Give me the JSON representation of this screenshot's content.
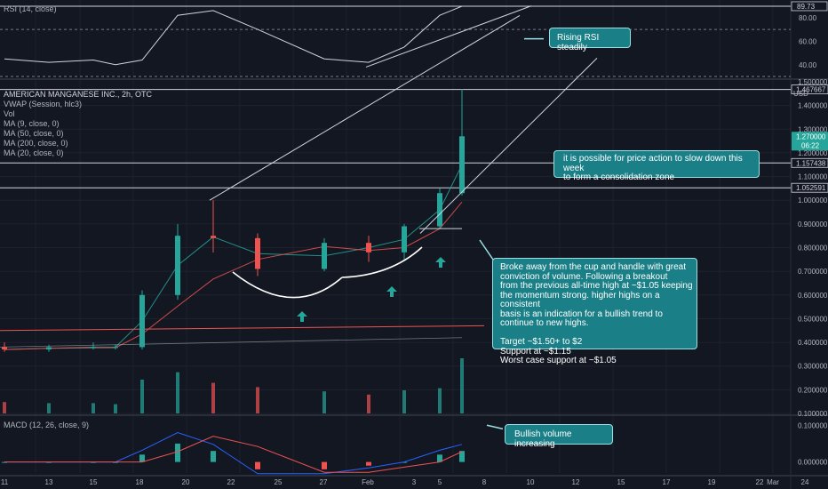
{
  "chart_data": [
    {
      "type": "line",
      "panel": "RSI",
      "indicator_label": "RSI (14, close)",
      "y_ticks": [
        40.0,
        60.0,
        80.0
      ],
      "ylim": [
        30,
        95
      ],
      "last_value": "89.73",
      "levels": [
        30,
        70,
        89.73
      ],
      "x": [
        "Jan 11",
        "Jan 13",
        "Jan 15",
        "Jan 18",
        "Jan 20",
        "Jan 22",
        "Jan 25",
        "Jan 27",
        "Feb 1",
        "Feb 3",
        "Feb 5",
        "Feb 8",
        "Feb 9"
      ],
      "series": [
        {
          "values": [
            45,
            42,
            44,
            40,
            44,
            82,
            86,
            70,
            45,
            42,
            55,
            82,
            89.73
          ]
        }
      ],
      "annotation": "Rising RSI steadily"
    },
    {
      "type": "candlestick",
      "panel": "Price",
      "title": "AMERICAN MANGANESE INC., 2h, OTC",
      "indicators": [
        "VWAP (Session, hlc3)",
        "Vol",
        "MA (9, close, 0)",
        "MA (50, close, 0)",
        "MA (200, close, 0)",
        "MA (20, close, 0)"
      ],
      "currency": "USD",
      "y_ticks": [
        0.1,
        0.2,
        0.3,
        0.4,
        0.5,
        0.6,
        0.7,
        0.8,
        0.9,
        1.0,
        1.1,
        1.2,
        1.3,
        1.4
      ],
      "y_tick_labels": [
        "0.100000",
        "0.200000",
        "0.300000",
        "0.400000",
        "0.500000",
        "0.600000",
        "0.700000",
        "0.800000",
        "0.900000",
        "1.000000",
        "1.100000",
        "1.200000",
        "1.300000",
        "1.400000"
      ],
      "ylim": [
        0.1,
        1.5
      ],
      "horizontal_levels": [
        {
          "value": 1.467667,
          "label": "1.467667"
        },
        {
          "value": 1.157438,
          "label": "1.157438"
        },
        {
          "value": 1.052591,
          "label": "1.052591"
        }
      ],
      "top_label": "1.500000",
      "last_price": "1.270000",
      "countdown": "06:22",
      "x_labels": [
        "11",
        "13",
        "15",
        "18",
        "20",
        "22",
        "25",
        "27",
        "Feb",
        "3",
        "5",
        "8",
        "10",
        "12",
        "15",
        "17",
        "19",
        "22",
        "24",
        "Mar"
      ],
      "ohlc": [
        {
          "d": "Jan 11",
          "o": 0.38,
          "h": 0.4,
          "l": 0.36,
          "c": 0.37
        },
        {
          "d": "Jan 13",
          "o": 0.37,
          "h": 0.39,
          "l": 0.36,
          "c": 0.38
        },
        {
          "d": "Jan 15",
          "o": 0.38,
          "h": 0.4,
          "l": 0.37,
          "c": 0.38
        },
        {
          "d": "Jan 18",
          "o": 0.38,
          "h": 0.39,
          "l": 0.37,
          "c": 0.38
        },
        {
          "d": "Jan 20",
          "o": 0.38,
          "h": 0.62,
          "l": 0.37,
          "c": 0.6
        },
        {
          "d": "Jan 22",
          "o": 0.6,
          "h": 0.9,
          "l": 0.58,
          "c": 0.85
        },
        {
          "d": "Jan 25",
          "o": 0.85,
          "h": 1.0,
          "l": 0.78,
          "c": 0.84
        },
        {
          "d": "Jan 27",
          "o": 0.84,
          "h": 0.86,
          "l": 0.68,
          "c": 0.71
        },
        {
          "d": "Feb 1",
          "o": 0.71,
          "h": 0.84,
          "l": 0.7,
          "c": 0.82
        },
        {
          "d": "Feb 3",
          "o": 0.82,
          "h": 0.85,
          "l": 0.74,
          "c": 0.78
        },
        {
          "d": "Feb 5",
          "o": 0.78,
          "h": 0.9,
          "l": 0.75,
          "c": 0.89
        },
        {
          "d": "Feb 8",
          "o": 0.89,
          "h": 1.05,
          "l": 0.88,
          "c": 1.03
        },
        {
          "d": "Feb 9",
          "o": 1.03,
          "h": 1.47,
          "l": 1.02,
          "c": 1.27
        }
      ],
      "annotations": [
        "it is possible for price action to slow down this week\nto form a consolidation zone",
        "Broke away from the cup and handle with great\nconviction of volume. Following a breakout\nfrom the previous all-time high at ~$1.05 keeping\nthe momentum strong. higher highs on a consistent\nbasis is an indication for a bullish trend to\ncontinue to new highs.\n\nTarget ~$1.50+ to $2\nSupport at ~$1.15\nWorst case support at ~$1.05"
      ]
    },
    {
      "type": "bar",
      "panel": "MACD",
      "indicator_label": "MACD (12, 26, close, 9)",
      "y_ticks": [
        0.0,
        0.1
      ],
      "y_tick_labels": [
        "0.000000",
        "0.100000"
      ],
      "ylim": [
        -0.03,
        0.12
      ],
      "x": [
        "Jan 11",
        "Jan 13",
        "Jan 15",
        "Jan 18",
        "Jan 20",
        "Jan 22",
        "Jan 25",
        "Jan 27",
        "Feb 1",
        "Feb 3",
        "Feb 5",
        "Feb 8",
        "Feb 9"
      ],
      "series": [
        {
          "values": [
            0.0,
            0.0,
            0.0,
            0.0,
            0.02,
            0.05,
            0.03,
            -0.02,
            -0.02,
            -0.01,
            0.0,
            0.02,
            0.03
          ]
        }
      ],
      "annotation": "Bullish volume increasing"
    }
  ],
  "colors": {
    "up": "#26a69a",
    "down": "#ef5350",
    "background": "#131722",
    "note": "#1a7f86"
  }
}
